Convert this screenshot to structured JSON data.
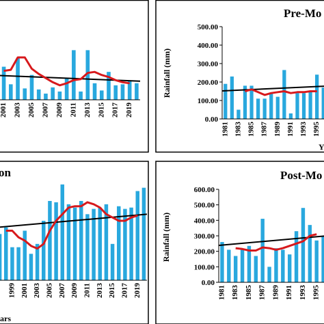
{
  "colors": {
    "bar": "#29a8de",
    "moving_average": "#d7191c",
    "trend": "#000000",
    "frame": "#000000"
  },
  "chart_data": [
    {
      "panel": "top-left",
      "type": "bar",
      "title": "",
      "xlabel": "",
      "ylabel": "",
      "x": [
        1999,
        2000,
        2001,
        2002,
        2003,
        2004,
        2005,
        2006,
        2007,
        2008,
        2009,
        2010,
        2011,
        2012,
        2013,
        2014,
        2015,
        2016,
        2017,
        2018,
        2019,
        2020
      ],
      "x_tick_labels": [
        "2001",
        "2003",
        "2005",
        "2007",
        "2009",
        "2011",
        "2013",
        "2015",
        "2017",
        "2019"
      ],
      "values": [
        40,
        310,
        160,
        75,
        200,
        55,
        120,
        50,
        30,
        60,
        40,
        105,
        240,
        40,
        240,
        80,
        45,
        135,
        70,
        75,
        90,
        80
      ],
      "moving_average": [
        null,
        null,
        140,
        145,
        205,
        205,
        150,
        125,
        105,
        85,
        70,
        80,
        95,
        100,
        130,
        135,
        120,
        110,
        95,
        85,
        80,
        null
      ],
      "trend": {
        "start": 120,
        "end": 90
      },
      "ylim": [
        0,
        400
      ]
    },
    {
      "panel": "top-right",
      "type": "bar",
      "title": "Pre-Mo",
      "xlabel": "Y",
      "ylabel": "Rainfall (mm)",
      "x": [
        1981,
        1982,
        1983,
        1984,
        1985,
        1986,
        1987,
        1988,
        1989,
        1990,
        1991,
        1992,
        1993,
        1994,
        1995,
        1996
      ],
      "x_tick_labels": [
        "1981",
        "1983",
        "1985",
        "1987",
        "1989",
        "1991",
        "1993",
        "1995"
      ],
      "y_tick_labels": [
        "0.00",
        "100.00",
        "200.00",
        "300.00",
        "400.00",
        "500.00"
      ],
      "values": [
        190,
        230,
        50,
        180,
        180,
        110,
        110,
        140,
        120,
        265,
        30,
        140,
        140,
        150,
        240,
        170
      ],
      "moving_average": [
        null,
        null,
        null,
        150,
        160,
        145,
        130,
        140,
        145,
        150,
        140,
        145,
        145,
        150,
        150,
        null
      ],
      "trend": {
        "start": 152,
        "end": 178
      },
      "ylim": [
        0,
        500
      ]
    },
    {
      "panel": "bottom-left",
      "type": "bar",
      "title": "on",
      "xlabel": "ars",
      "ylabel": "",
      "x": [
        1997,
        1998,
        1999,
        2000,
        2001,
        2002,
        2003,
        2004,
        2005,
        2006,
        2007,
        2008,
        2009,
        2010,
        2011,
        2012,
        2013,
        2014,
        2015,
        2016,
        2017,
        2018,
        2019,
        2020
      ],
      "x_tick_labels": [
        "1999",
        "2001",
        "2003",
        "2005",
        "2007",
        "2009",
        "2011",
        "2013",
        "2015",
        "2017",
        "2019"
      ],
      "values": [
        70,
        80,
        50,
        50,
        75,
        40,
        55,
        90,
        120,
        118,
        145,
        115,
        110,
        120,
        100,
        108,
        110,
        115,
        55,
        112,
        108,
        110,
        135,
        140
      ],
      "moving_average": [
        null,
        75,
        75,
        65,
        60,
        52,
        48,
        55,
        75,
        90,
        100,
        110,
        112,
        112,
        118,
        115,
        110,
        100,
        95,
        90,
        90,
        95,
        98,
        null
      ],
      "trend": {
        "start": 80,
        "end": 100
      },
      "ylim": [
        0,
        150
      ]
    },
    {
      "panel": "bottom-right",
      "type": "bar",
      "title": "Post-Mo",
      "xlabel": "",
      "ylabel": "Rainfall (mm)",
      "x": [
        1981,
        1982,
        1983,
        1984,
        1985,
        1986,
        1987,
        1988,
        1989,
        1990,
        1991,
        1992,
        1993,
        1994,
        1995,
        1996
      ],
      "x_tick_labels": [
        "1981",
        "1983",
        "1985",
        "1987",
        "1989",
        "1991",
        "1993",
        "1995"
      ],
      "y_tick_labels": [
        "0.00",
        "100.00",
        "200.00",
        "300.00",
        "400.00",
        "500.00",
        "600.00"
      ],
      "values": [
        260,
        210,
        170,
        210,
        235,
        170,
        410,
        100,
        220,
        210,
        180,
        330,
        480,
        370,
        270,
        300
      ],
      "moving_average": [
        null,
        null,
        220,
        215,
        205,
        205,
        225,
        220,
        210,
        220,
        235,
        250,
        265,
        300,
        310,
        null
      ],
      "trend": {
        "start": 238,
        "end": 300
      },
      "ylim": [
        0,
        600
      ]
    }
  ]
}
